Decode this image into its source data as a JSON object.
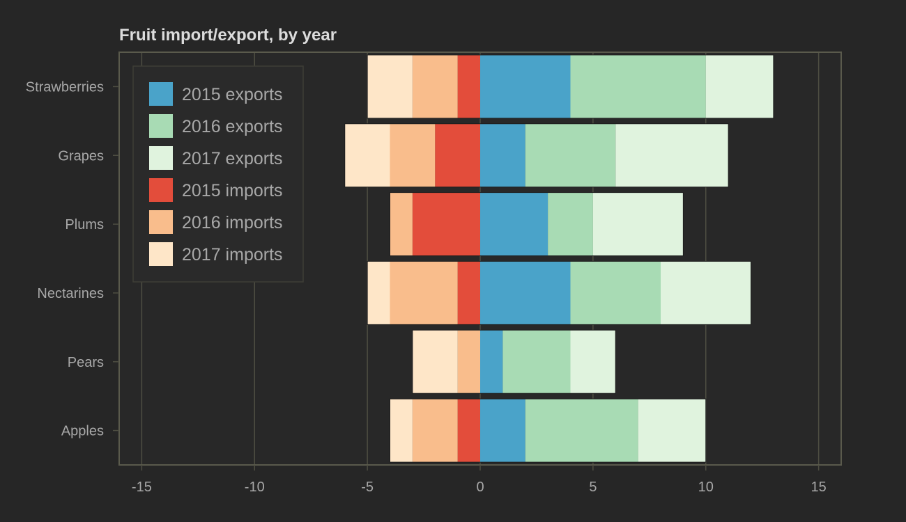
{
  "chart_data": {
    "type": "bar",
    "orientation": "horizontal",
    "stacked": true,
    "title": "Fruit import/export, by year",
    "xlabel": "",
    "ylabel": "",
    "xlim": [
      -16,
      16
    ],
    "x_ticks": [
      -15,
      -10,
      -5,
      0,
      5,
      10,
      15
    ],
    "grid": "vertical",
    "legend_position": "top-left",
    "categories": [
      "Apples",
      "Pears",
      "Nectarines",
      "Plums",
      "Grapes",
      "Strawberries"
    ],
    "series": [
      {
        "name": "2015 exports",
        "color": "#4aa3c9",
        "values": [
          2,
          1,
          4,
          3,
          2,
          4
        ]
      },
      {
        "name": "2016 exports",
        "color": "#a8dbb4",
        "values": [
          5,
          3,
          4,
          2,
          4,
          6
        ]
      },
      {
        "name": "2017 exports",
        "color": "#e0f3de",
        "values": [
          3,
          2,
          4,
          4,
          5,
          3
        ]
      },
      {
        "name": "2015 imports",
        "color": "#e34d3b",
        "values": [
          -1,
          0,
          -1,
          -3,
          -2,
          -1
        ]
      },
      {
        "name": "2016 imports",
        "color": "#f9bd8c",
        "values": [
          -2,
          -1,
          -3,
          -1,
          -2,
          -2
        ]
      },
      {
        "name": "2017 imports",
        "color": "#fee6c8",
        "values": [
          -1,
          -2,
          -1,
          0,
          -2,
          -2
        ]
      }
    ],
    "colors": {
      "background": "#262626",
      "axes_background": "#282828",
      "grid": "#4e4e42",
      "text": "#a8a8a8",
      "title": "#dcdcdc"
    }
  }
}
